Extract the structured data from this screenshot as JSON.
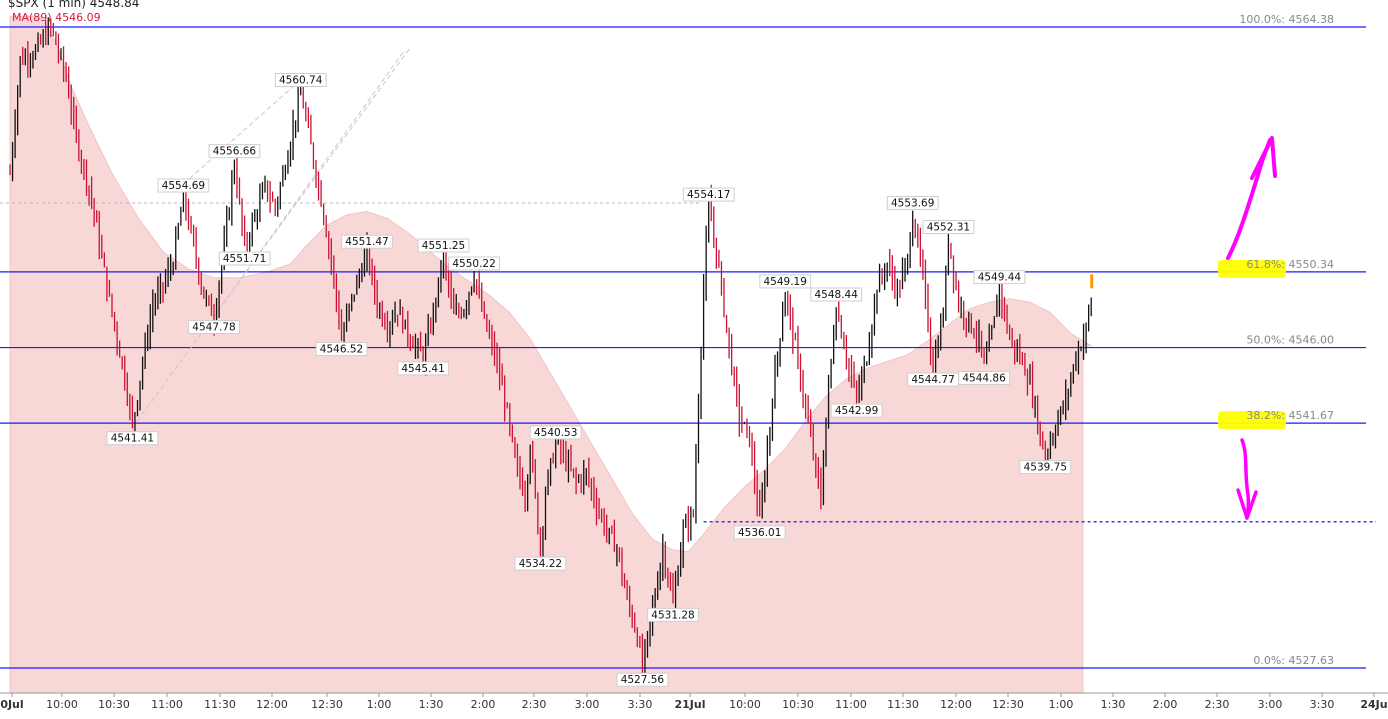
{
  "header": {
    "symbol_line": "$SPX (1 min) 4548.84",
    "ma_line": "MA(89) 4546.09"
  },
  "chart_data": {
    "type": "candlestick",
    "symbol": "$SPX",
    "interval": "1 min",
    "last_price": 4548.84,
    "moving_average": {
      "label": "MA(89)",
      "value": 4546.09,
      "color": "#f8d7d7"
    },
    "ylim": [
      4526.0,
      4566.0
    ],
    "x_tick_labels": [
      "0Jul",
      "10:00",
      "10:30",
      "11:00",
      "11:30",
      "12:00",
      "12:30",
      "1:00",
      "1:30",
      "2:00",
      "2:30",
      "3:00",
      "3:30",
      "21Jul",
      "10:00",
      "10:30",
      "11:00",
      "11:30",
      "12:00",
      "12:30",
      "1:00",
      "1:30",
      "2:00",
      "2:30",
      "3:00",
      "3:30",
      "24Ju"
    ],
    "fib_levels": [
      {
        "label": "100.0%: 4564.38",
        "price": 4564.38
      },
      {
        "label": "61.8%: 4550.34",
        "price": 4550.34
      },
      {
        "label": "50.0%: 4546.00",
        "price": 4546.0
      },
      {
        "label": "38.2%: 4541.67",
        "price": 4541.67
      },
      {
        "label": "0.0%: 4527.63",
        "price": 4527.63
      }
    ],
    "highlighted_levels": [
      "61.8%",
      "38.2%"
    ],
    "annotations": [
      {
        "text": "4541.41",
        "slot": 24,
        "price": 4541.41,
        "pos": "below"
      },
      {
        "text": "4547.78",
        "slot": 40,
        "price": 4547.78,
        "pos": "below"
      },
      {
        "text": "4554.69",
        "slot": 34,
        "price": 4554.69,
        "pos": "above"
      },
      {
        "text": "4556.66",
        "slot": 44,
        "price": 4556.66,
        "pos": "above"
      },
      {
        "text": "4551.71",
        "slot": 46,
        "price": 4551.71,
        "pos": "below"
      },
      {
        "text": "4560.74",
        "slot": 57,
        "price": 4560.74,
        "pos": "above"
      },
      {
        "text": "4546.52",
        "slot": 65,
        "price": 4546.52,
        "pos": "below"
      },
      {
        "text": "4551.47",
        "slot": 70,
        "price": 4551.47,
        "pos": "above"
      },
      {
        "text": "4551.25",
        "slot": 85,
        "price": 4551.25,
        "pos": "above"
      },
      {
        "text": "4550.22",
        "slot": 91,
        "price": 4550.22,
        "pos": "above"
      },
      {
        "text": "4545.41",
        "slot": 81,
        "price": 4545.41,
        "pos": "below"
      },
      {
        "text": "4540.53",
        "slot": 107,
        "price": 4540.53,
        "pos": "above"
      },
      {
        "text": "4534.22",
        "slot": 104,
        "price": 4534.22,
        "pos": "below"
      },
      {
        "text": "4527.56",
        "slot": 124,
        "price": 4527.56,
        "pos": "below"
      },
      {
        "text": "4531.28",
        "slot": 130,
        "price": 4531.28,
        "pos": "below"
      },
      {
        "text": "4554.17",
        "slot": 137,
        "price": 4554.17,
        "pos": "above"
      },
      {
        "text": "4536.01",
        "slot": 147,
        "price": 4536.01,
        "pos": "below"
      },
      {
        "text": "4549.19",
        "slot": 152,
        "price": 4549.19,
        "pos": "above"
      },
      {
        "text": "4548.44",
        "slot": 162,
        "price": 4548.44,
        "pos": "above"
      },
      {
        "text": "4542.99",
        "slot": 166,
        "price": 4542.99,
        "pos": "below"
      },
      {
        "text": "4553.69",
        "slot": 177,
        "price": 4553.69,
        "pos": "above"
      },
      {
        "text": "4552.31",
        "slot": 184,
        "price": 4552.31,
        "pos": "above"
      },
      {
        "text": "4544.77",
        "slot": 181,
        "price": 4544.77,
        "pos": "below"
      },
      {
        "text": "4544.86",
        "slot": 191,
        "price": 4544.86,
        "pos": "below"
      },
      {
        "text": "4549.44",
        "slot": 194,
        "price": 4549.44,
        "pos": "above"
      },
      {
        "text": "4539.75",
        "slot": 203,
        "price": 4539.75,
        "pos": "below"
      }
    ],
    "support_line": {
      "price": 4536.01,
      "style": "dotted",
      "color": "#0000cc"
    },
    "price_path": [
      [
        0,
        4556.0
      ],
      [
        2,
        4562.5
      ],
      [
        5,
        4563.0
      ],
      [
        8,
        4564.4
      ],
      [
        11,
        4561.5
      ],
      [
        13,
        4558.0
      ],
      [
        16,
        4554.5
      ],
      [
        19,
        4549.5
      ],
      [
        21,
        4546.5
      ],
      [
        23,
        4543.5
      ],
      [
        24,
        4541.41
      ],
      [
        26,
        4545.2
      ],
      [
        28,
        4548.5
      ],
      [
        30,
        4549.5
      ],
      [
        32,
        4551.0
      ],
      [
        34,
        4554.69
      ],
      [
        36,
        4551.8
      ],
      [
        38,
        4549.0
      ],
      [
        40,
        4547.78
      ],
      [
        42,
        4551.8
      ],
      [
        44,
        4556.66
      ],
      [
        46,
        4551.71
      ],
      [
        48,
        4553.5
      ],
      [
        50,
        4555.2
      ],
      [
        52,
        4554.0
      ],
      [
        54,
        4556.5
      ],
      [
        57,
        4560.74
      ],
      [
        59,
        4557.5
      ],
      [
        61,
        4554.5
      ],
      [
        63,
        4551.0
      ],
      [
        65,
        4546.52
      ],
      [
        67,
        4548.8
      ],
      [
        70,
        4551.47
      ],
      [
        72,
        4548.5
      ],
      [
        74,
        4547.3
      ],
      [
        76,
        4548.2
      ],
      [
        78,
        4546.8
      ],
      [
        81,
        4545.41
      ],
      [
        83,
        4548.0
      ],
      [
        85,
        4551.25
      ],
      [
        87,
        4547.8
      ],
      [
        89,
        4548.3
      ],
      [
        91,
        4550.22
      ],
      [
        93,
        4547.5
      ],
      [
        95,
        4545.6
      ],
      [
        97,
        4543.0
      ],
      [
        99,
        4539.5
      ],
      [
        101,
        4537.5
      ],
      [
        102,
        4540.5
      ],
      [
        104,
        4534.22
      ],
      [
        105,
        4537.8
      ],
      [
        107,
        4540.53
      ],
      [
        109,
        4539.5
      ],
      [
        111,
        4538.3
      ],
      [
        113,
        4538.8
      ],
      [
        115,
        4537.0
      ],
      [
        117,
        4535.5
      ],
      [
        119,
        4534.5
      ],
      [
        121,
        4531.5
      ],
      [
        123,
        4529.5
      ],
      [
        124,
        4527.56
      ],
      [
        126,
        4531.0
      ],
      [
        128,
        4534.5
      ],
      [
        130,
        4531.28
      ],
      [
        132,
        4535.5
      ],
      [
        134,
        4536.5
      ],
      [
        136,
        4549.5
      ],
      [
        137,
        4554.17
      ],
      [
        139,
        4550.5
      ],
      [
        141,
        4546.0
      ],
      [
        143,
        4542.0
      ],
      [
        145,
        4540.8
      ],
      [
        147,
        4536.01
      ],
      [
        149,
        4541.5
      ],
      [
        150,
        4544.5
      ],
      [
        152,
        4549.19
      ],
      [
        154,
        4546.0
      ],
      [
        156,
        4542.5
      ],
      [
        158,
        4539.0
      ],
      [
        159,
        4537.3
      ],
      [
        160,
        4542.0
      ],
      [
        162,
        4548.44
      ],
      [
        164,
        4545.5
      ],
      [
        166,
        4542.99
      ],
      [
        168,
        4545.5
      ],
      [
        170,
        4549.5
      ],
      [
        172,
        4550.8
      ],
      [
        174,
        4549.2
      ],
      [
        176,
        4551.0
      ],
      [
        177,
        4553.69
      ],
      [
        179,
        4550.0
      ],
      [
        181,
        4544.77
      ],
      [
        183,
        4548.0
      ],
      [
        184,
        4552.31
      ],
      [
        186,
        4548.5
      ],
      [
        188,
        4547.5
      ],
      [
        190,
        4546.5
      ],
      [
        191,
        4544.86
      ],
      [
        193,
        4547.5
      ],
      [
        194,
        4549.44
      ],
      [
        196,
        4546.5
      ],
      [
        198,
        4545.5
      ],
      [
        200,
        4544.0
      ],
      [
        202,
        4541.0
      ],
      [
        203,
        4539.75
      ],
      [
        205,
        4541.5
      ],
      [
        207,
        4543.0
      ],
      [
        209,
        4545.5
      ],
      [
        211,
        4547.0
      ],
      [
        212,
        4548.84
      ]
    ],
    "ma_path": [
      [
        0,
        4565.0
      ],
      [
        3,
        4565.0
      ],
      [
        6,
        4565.0
      ],
      [
        9,
        4563.5
      ],
      [
        12,
        4561.0
      ],
      [
        15,
        4559.0
      ],
      [
        20,
        4556.0
      ],
      [
        25,
        4553.5
      ],
      [
        30,
        4551.5
      ],
      [
        35,
        4550.5
      ],
      [
        40,
        4550.0
      ],
      [
        45,
        4550.0
      ],
      [
        50,
        4550.3
      ],
      [
        55,
        4550.8
      ],
      [
        58,
        4551.8
      ],
      [
        62,
        4553.0
      ],
      [
        66,
        4553.6
      ],
      [
        70,
        4553.8
      ],
      [
        74,
        4553.4
      ],
      [
        78,
        4552.6
      ],
      [
        82,
        4551.6
      ],
      [
        86,
        4550.6
      ],
      [
        90,
        4549.8
      ],
      [
        94,
        4549.0
      ],
      [
        98,
        4548.0
      ],
      [
        102,
        4546.5
      ],
      [
        106,
        4544.5
      ],
      [
        110,
        4542.5
      ],
      [
        114,
        4540.5
      ],
      [
        118,
        4538.5
      ],
      [
        122,
        4536.5
      ],
      [
        126,
        4535.0
      ],
      [
        130,
        4534.4
      ],
      [
        133,
        4534.3
      ],
      [
        136,
        4535.3
      ],
      [
        140,
        4536.8
      ],
      [
        144,
        4538.0
      ],
      [
        148,
        4539.0
      ],
      [
        152,
        4540.2
      ],
      [
        156,
        4541.8
      ],
      [
        160,
        4543.2
      ],
      [
        164,
        4544.2
      ],
      [
        168,
        4544.8
      ],
      [
        172,
        4545.2
      ],
      [
        176,
        4545.6
      ],
      [
        180,
        4546.4
      ],
      [
        184,
        4547.3
      ],
      [
        188,
        4548.2
      ],
      [
        192,
        4548.6
      ],
      [
        196,
        4548.8
      ],
      [
        200,
        4548.6
      ],
      [
        204,
        4548.0
      ],
      [
        208,
        4546.8
      ],
      [
        212,
        4546.1
      ]
    ],
    "pink_arrows": [
      {
        "direction": "up",
        "color": "#ff00ff"
      },
      {
        "direction": "down",
        "color": "#ff00ff"
      }
    ]
  }
}
